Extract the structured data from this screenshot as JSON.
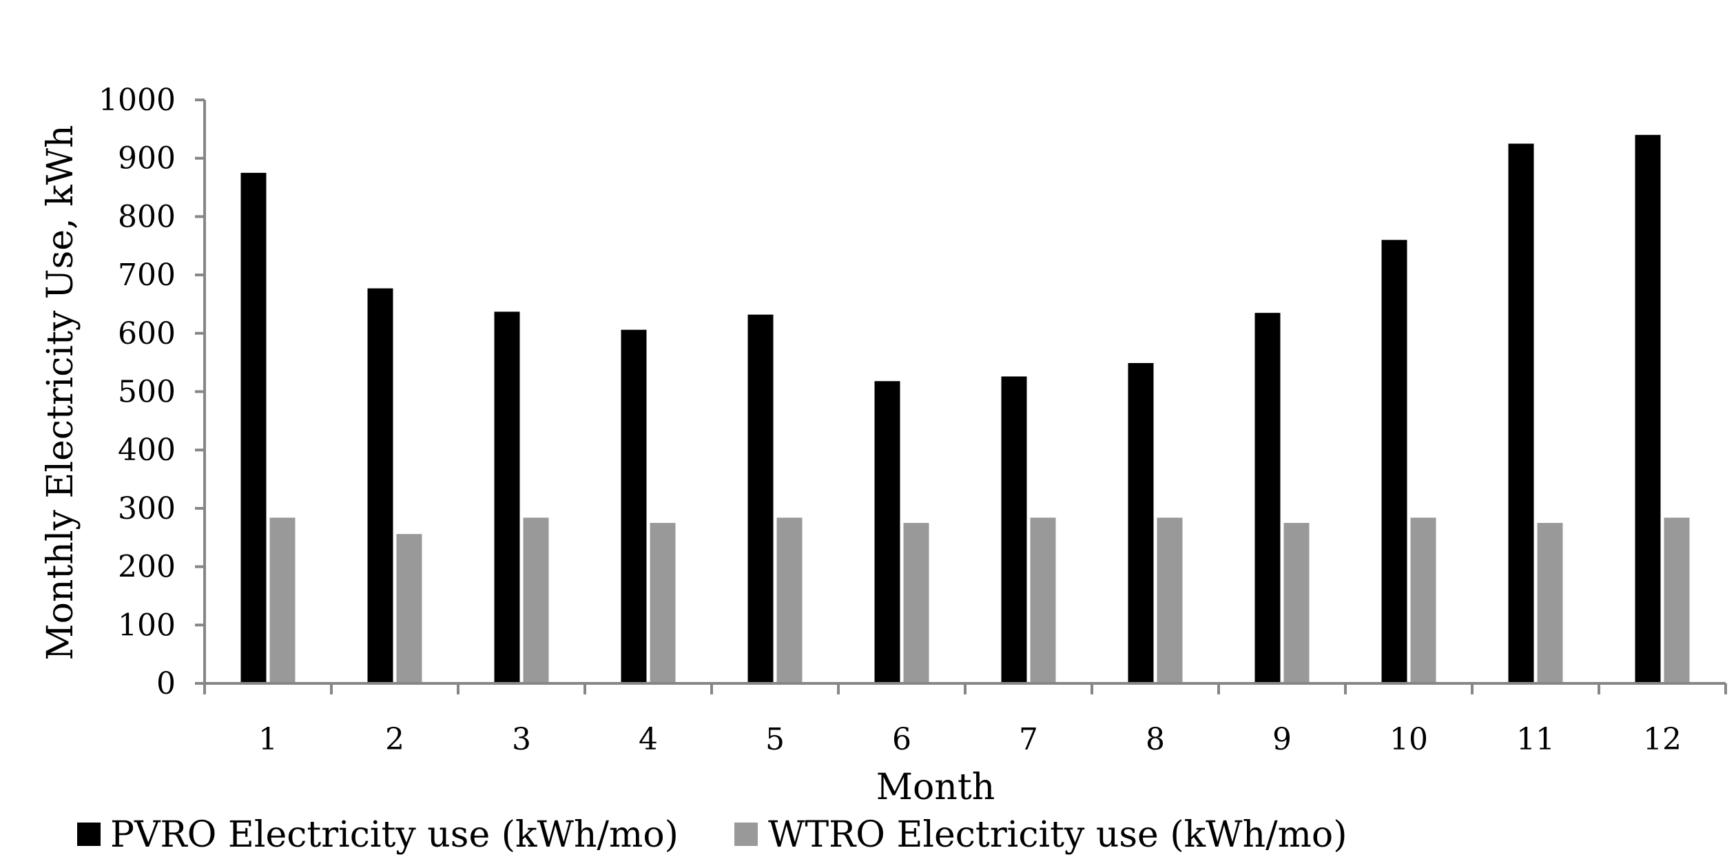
{
  "chart_data": {
    "type": "bar",
    "xlabel": "Month",
    "ylabel": "Monthly Electricity Use,  kWh",
    "ylim": [
      0,
      1000
    ],
    "yticks": [
      0,
      100,
      200,
      300,
      400,
      500,
      600,
      700,
      800,
      900,
      1000
    ],
    "categories": [
      "1",
      "2",
      "3",
      "4",
      "5",
      "6",
      "7",
      "8",
      "9",
      "10",
      "11",
      "12"
    ],
    "grid": false,
    "legend_position": "bottom",
    "series": [
      {
        "name": "PVRO Electricity use  (kWh/mo)",
        "color": "#000000",
        "values": [
          875,
          677,
          637,
          606,
          632,
          518,
          526,
          549,
          635,
          760,
          925,
          940
        ]
      },
      {
        "name": "WTRO Electricity use  (kWh/mo)",
        "color": "#999999",
        "values": [
          284,
          256,
          284,
          275,
          284,
          275,
          284,
          284,
          275,
          284,
          275,
          284
        ]
      }
    ]
  }
}
